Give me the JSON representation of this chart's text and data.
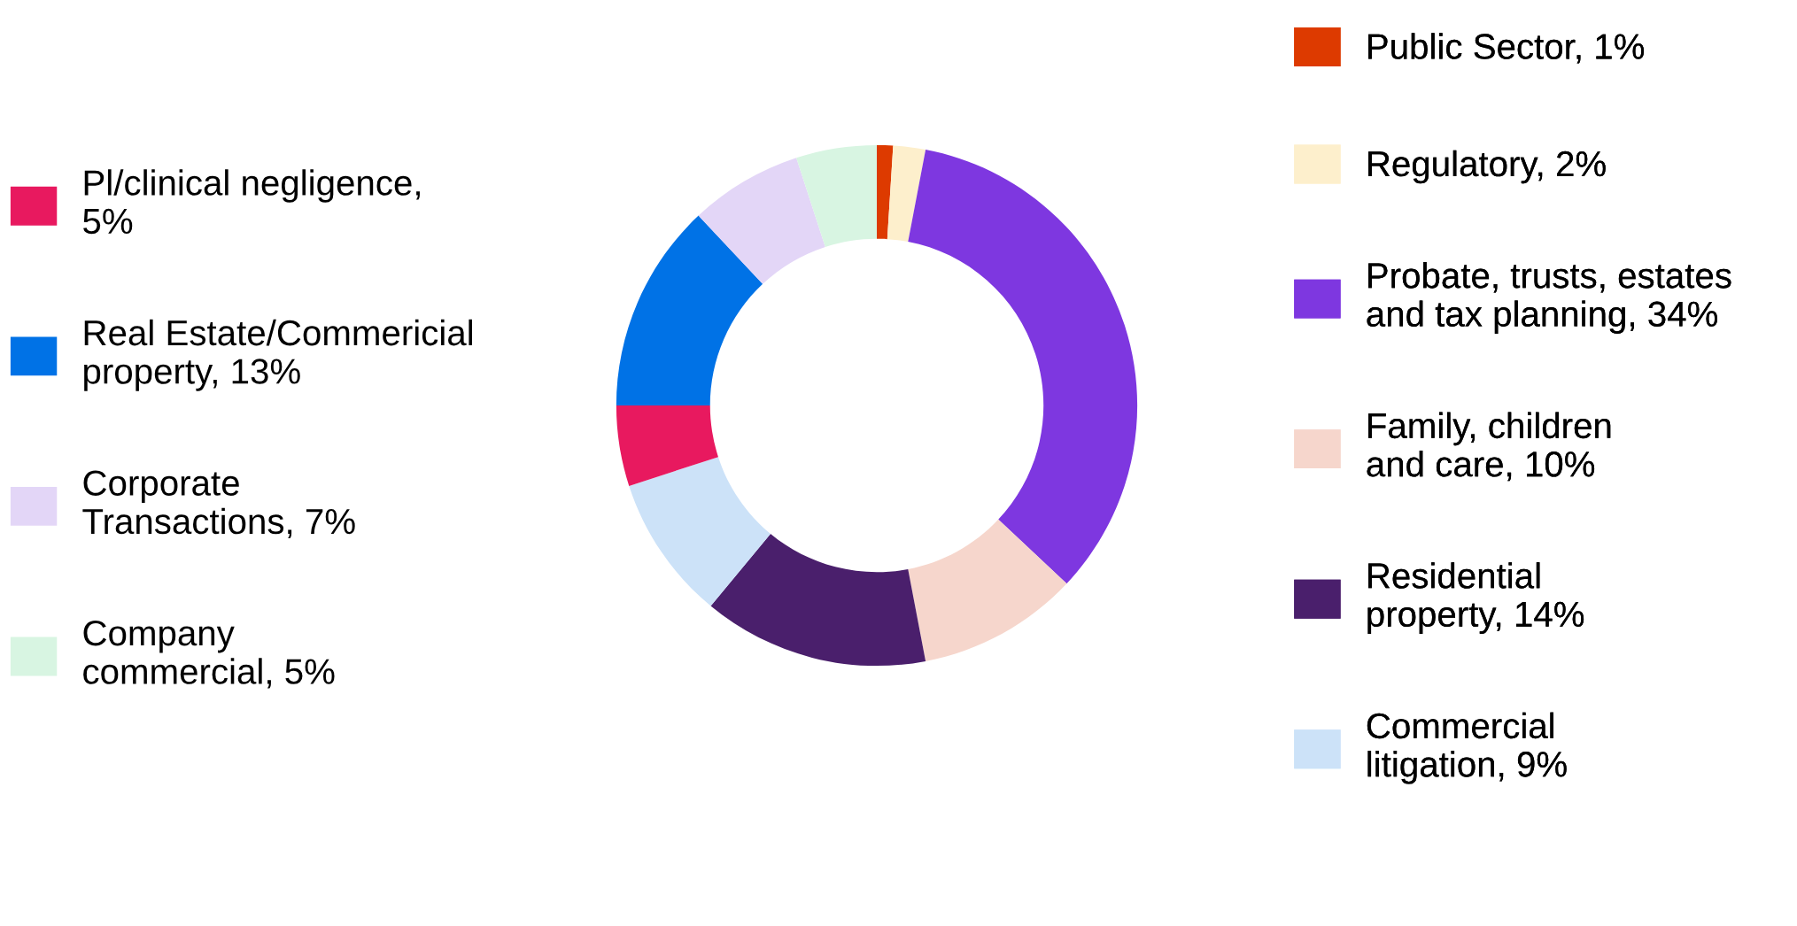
{
  "chart_data": {
    "type": "donut",
    "categories": [
      "Public Sector, 1%",
      "Regulatory, 2%",
      "Probate, trusts, estates\nand tax planning, 34%",
      "Family, children\nand care, 10%",
      "Residential\nproperty, 14%",
      "Commercial\nlitigation, 9%",
      "Pl/clinical negligence,\n5%",
      "Real Estate/Commericial\nproperty, 13%",
      "Corporate\nTransactions, 7%",
      "Company\ncommercial, 5%"
    ],
    "values": [
      1,
      2,
      34,
      10,
      14,
      9,
      5,
      13,
      7,
      5
    ],
    "colors": [
      "#dd3a00",
      "#fdefcc",
      "#7e37e0",
      "#f6d6cc",
      "#4a1f6c",
      "#cce2f8",
      "#e8195f",
      "#0072e6",
      "#e3d6f7",
      "#d8f5e2"
    ],
    "legend": "right"
  }
}
